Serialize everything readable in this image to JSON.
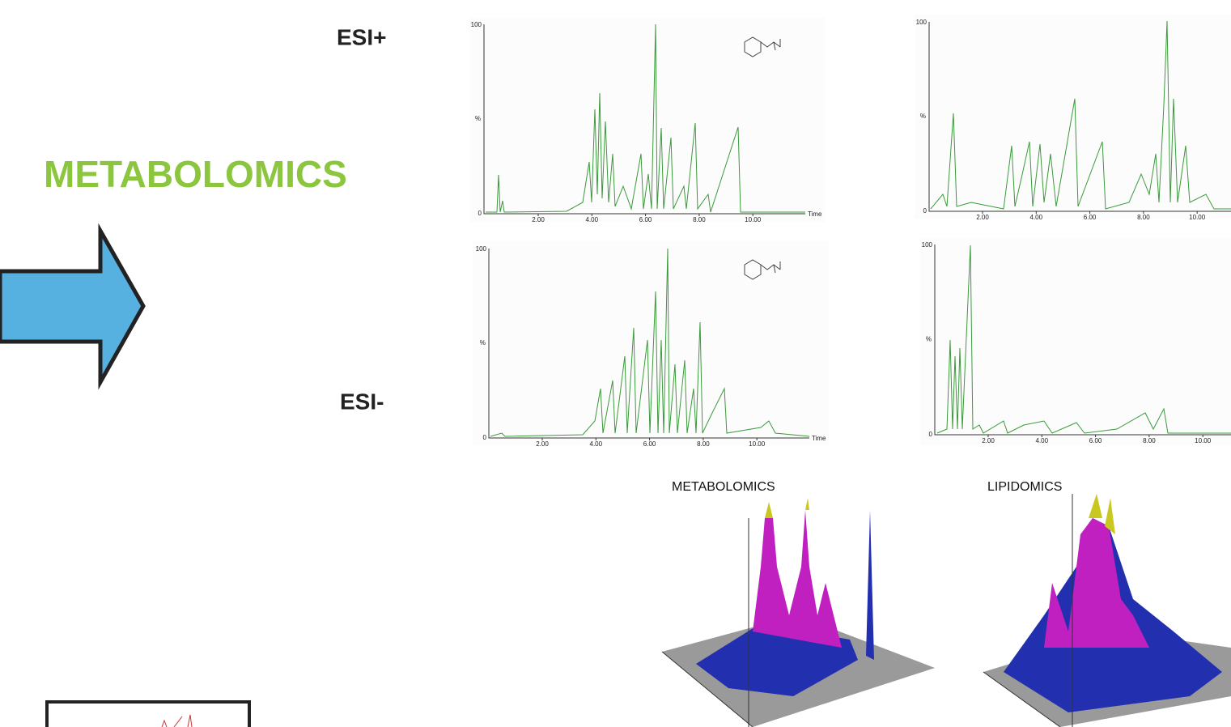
{
  "headings": {
    "main": "METABOLOMICS",
    "esi_positive": "ESI+",
    "esi_negative": "ESI-",
    "metabolomics_3d": "METABOLOMICS",
    "lipidomics_3d": "LIPIDOMICS"
  },
  "chromatograms": [
    {
      "y_top": "100",
      "y_bottom": "0",
      "y_label": "%",
      "x_ticks": [
        "2.00",
        "4.00",
        "6.00",
        "8.00",
        "10.00"
      ],
      "x_label": "Time"
    },
    {
      "y_top": "100",
      "y_bottom": "0",
      "y_label": "%",
      "x_ticks": [
        "2.00",
        "4.00",
        "6.00",
        "8.00",
        "10.00"
      ]
    },
    {
      "y_top": "100",
      "y_bottom": "0",
      "y_label": "%",
      "x_ticks": [
        "2.00",
        "4.00",
        "6.00",
        "8.00",
        "10.00"
      ],
      "x_label": "Time"
    },
    {
      "y_top": "100",
      "y_bottom": "0",
      "y_label": "%",
      "x_ticks": [
        "2.00",
        "4.00",
        "6.00",
        "8.00",
        "10.00"
      ]
    }
  ]
}
